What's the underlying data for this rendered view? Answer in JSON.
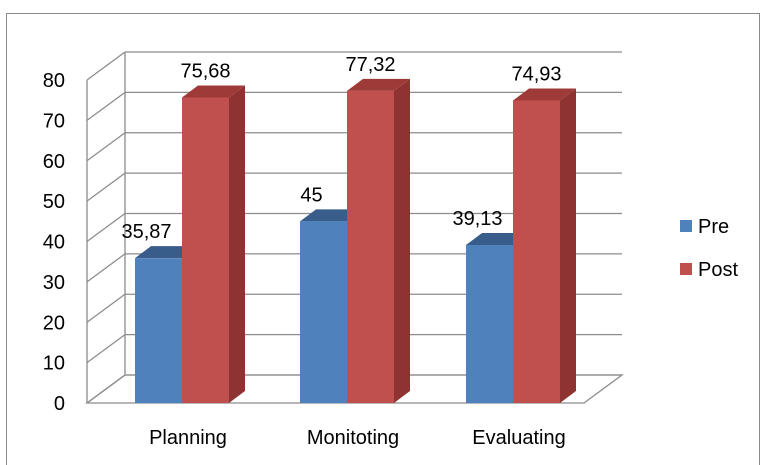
{
  "chart_data": {
    "type": "bar",
    "style": "3d-clustered-column",
    "categories": [
      "Planning",
      "Monitoting",
      "Evaluating"
    ],
    "series": [
      {
        "name": "Pre",
        "values": [
          35.87,
          45,
          39.13
        ],
        "labels": [
          "35,87",
          "45",
          "39,13"
        ],
        "color": "#4f81bd",
        "side_color": "#3a6596",
        "top_color": "#385d8a"
      },
      {
        "name": "Post",
        "values": [
          75.68,
          77.32,
          74.93
        ],
        "labels": [
          "75,68",
          "77,32",
          "74,93"
        ],
        "color": "#c0504d",
        "side_color": "#8e3331",
        "top_color": "#9e3b38"
      }
    ],
    "ylim": [
      0,
      80
    ],
    "yticks": [
      "0",
      "10",
      "20",
      "30",
      "40",
      "50",
      "60",
      "70",
      "80"
    ],
    "grid": true,
    "legend_position": "right"
  }
}
